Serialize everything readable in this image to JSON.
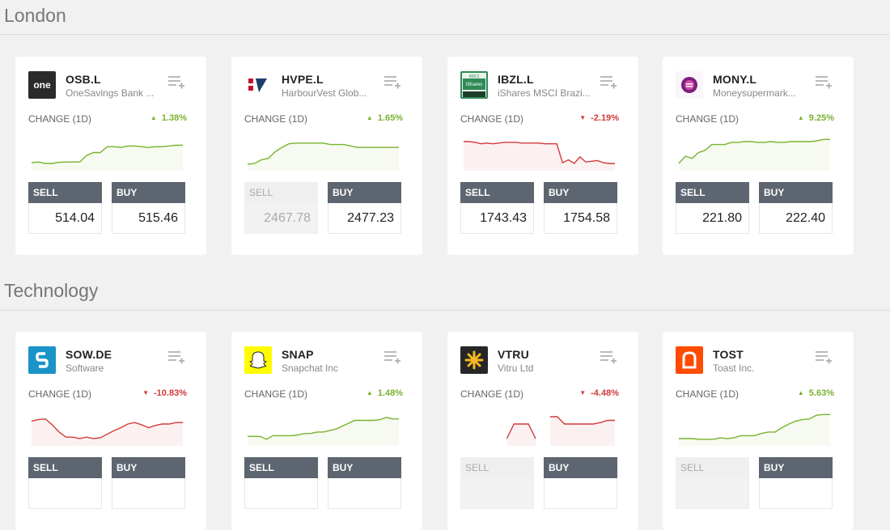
{
  "sections": [
    {
      "title": "London",
      "cards": [
        {
          "symbol": "OSB.L",
          "name": "OneSavings Bank ...",
          "change_label": "CHANGE (1D)",
          "change": "1.38%",
          "direction": "up",
          "sell_label": "SELL",
          "buy_label": "BUY",
          "sell_price": "514.04",
          "buy_price": "515.46",
          "sell_disabled": false,
          "logo_icon": "one-logo-icon",
          "logo_text": "one",
          "spark": [
            0.78,
            0.76,
            0.8,
            0.8,
            0.77,
            0.76,
            0.76,
            0.76,
            0.58,
            0.5,
            0.5,
            0.34,
            0.34,
            0.36,
            0.32,
            0.32,
            0.34,
            0.36,
            0.34,
            0.34,
            0.32,
            0.3,
            0.3
          ]
        },
        {
          "symbol": "HVPE.L",
          "name": "HarbourVest Glob...",
          "change_label": "CHANGE (1D)",
          "change": "1.65%",
          "direction": "up",
          "sell_label": "SELL",
          "buy_label": "BUY",
          "sell_price": "2467.78",
          "buy_price": "2477.23",
          "sell_disabled": true,
          "logo_icon": "harbourvest-logo-icon",
          "logo_text": "",
          "spark": [
            0.82,
            0.8,
            0.7,
            0.66,
            0.48,
            0.36,
            0.26,
            0.24,
            0.24,
            0.24,
            0.24,
            0.24,
            0.28,
            0.28,
            0.28,
            0.32,
            0.36,
            0.36,
            0.36,
            0.36,
            0.36,
            0.36,
            0.36
          ]
        },
        {
          "symbol": "IBZL.L",
          "name": "iShares MSCI Brazi...",
          "change_label": "CHANGE (1D)",
          "change": "-2.19%",
          "direction": "down",
          "sell_label": "SELL",
          "buy_label": "BUY",
          "sell_price": "1743.43",
          "buy_price": "1754.58",
          "sell_disabled": false,
          "logo_icon": "ishares-msci-logo-icon",
          "logo_text": "MSCI",
          "spark": [
            0.2,
            0.2,
            0.22,
            0.26,
            0.24,
            0.26,
            0.24,
            0.22,
            0.22,
            0.22,
            0.24,
            0.24,
            0.24,
            0.24,
            0.26,
            0.26,
            0.26,
            0.78,
            0.7,
            0.8,
            0.62,
            0.76,
            0.74,
            0.72,
            0.78,
            0.8,
            0.8
          ]
        },
        {
          "symbol": "MONY.L",
          "name": "Moneysupermark...",
          "change_label": "CHANGE (1D)",
          "change": "9.25%",
          "direction": "up",
          "sell_label": "SELL",
          "buy_label": "BUY",
          "sell_price": "221.80",
          "buy_price": "222.40",
          "sell_disabled": false,
          "logo_icon": "moneysupermarket-logo-icon",
          "logo_text": "",
          "spark": [
            0.8,
            0.6,
            0.66,
            0.5,
            0.44,
            0.28,
            0.28,
            0.28,
            0.22,
            0.22,
            0.2,
            0.2,
            0.22,
            0.22,
            0.2,
            0.22,
            0.22,
            0.2,
            0.2,
            0.2,
            0.2,
            0.18,
            0.14,
            0.14
          ]
        }
      ]
    },
    {
      "title": "Technology",
      "cards": [
        {
          "symbol": "SOW.DE",
          "name": "Software",
          "change_label": "CHANGE (1D)",
          "change": "-10.83%",
          "direction": "down",
          "sell_label": "SELL",
          "buy_label": "BUY",
          "sell_price": "",
          "buy_price": "",
          "sell_disabled": false,
          "logo_icon": "software-ag-logo-icon",
          "logo_text": "S",
          "spark": [
            0.32,
            0.28,
            0.26,
            0.42,
            0.62,
            0.76,
            0.76,
            0.8,
            0.76,
            0.8,
            0.78,
            0.68,
            0.58,
            0.5,
            0.4,
            0.36,
            0.42,
            0.5,
            0.44,
            0.4,
            0.4,
            0.36,
            0.36
          ]
        },
        {
          "symbol": "SNAP",
          "name": "Snapchat Inc",
          "change_label": "CHANGE (1D)",
          "change": "1.48%",
          "direction": "up",
          "sell_label": "SELL",
          "buy_label": "BUY",
          "sell_price": "",
          "buy_price": "",
          "sell_disabled": false,
          "logo_icon": "snapchat-ghost-logo-icon",
          "logo_text": "",
          "spark": [
            0.74,
            0.74,
            0.74,
            0.82,
            0.72,
            0.72,
            0.72,
            0.72,
            0.7,
            0.66,
            0.66,
            0.62,
            0.62,
            0.58,
            0.54,
            0.46,
            0.38,
            0.3,
            0.3,
            0.3,
            0.3,
            0.28,
            0.22,
            0.26,
            0.26
          ]
        },
        {
          "symbol": "VTRU",
          "name": "Vitru Ltd",
          "change_label": "CHANGE (1D)",
          "change": "-4.48%",
          "direction": "down",
          "sell_label": "SELL",
          "buy_label": "BUY",
          "sell_price": "",
          "buy_price": "",
          "sell_disabled": true,
          "logo_icon": "vitru-star-logo-icon",
          "logo_text": "",
          "spark": [
            null,
            null,
            null,
            null,
            null,
            null,
            0.8,
            0.4,
            0.4,
            0.4,
            0.8,
            null,
            0.2,
            0.2,
            0.4,
            0.4,
            0.4,
            0.4,
            0.4,
            0.36,
            0.3,
            0.3
          ]
        },
        {
          "symbol": "TOST",
          "name": "Toast Inc.",
          "change_label": "CHANGE (1D)",
          "change": "5.63%",
          "direction": "up",
          "sell_label": "SELL",
          "buy_label": "BUY",
          "sell_price": "",
          "buy_price": "",
          "sell_disabled": true,
          "logo_icon": "toast-logo-icon",
          "logo_text": "",
          "spark": [
            0.8,
            0.8,
            0.8,
            0.82,
            0.82,
            0.82,
            0.78,
            0.8,
            0.78,
            0.72,
            0.72,
            0.72,
            0.66,
            0.62,
            0.62,
            0.5,
            0.4,
            0.32,
            0.28,
            0.26,
            0.16,
            0.14,
            0.14
          ]
        }
      ]
    }
  ],
  "colors": {
    "up": "#79b22f",
    "down": "#d13a3a",
    "button": "#5d6570"
  }
}
